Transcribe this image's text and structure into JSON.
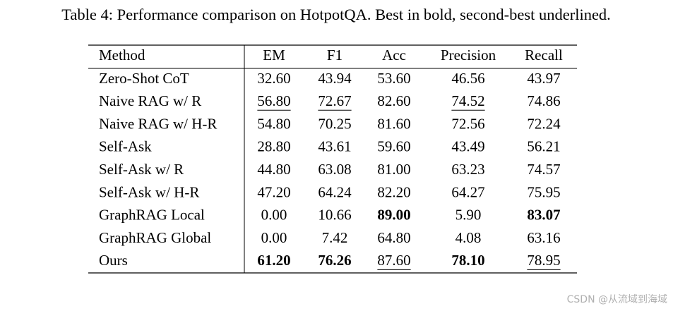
{
  "caption": "Table 4: Performance comparison on HotpotQA. Best in bold, second-best underlined.",
  "table": {
    "header": [
      "Method",
      "EM",
      "F1",
      "Acc",
      "Precision",
      "Recall"
    ],
    "rows": [
      [
        "Zero-Shot CoT",
        "32.60",
        "43.94",
        "53.60",
        "46.56",
        "43.97"
      ],
      [
        "Naive RAG w/ R",
        "56.80",
        "72.67",
        "82.60",
        "74.52",
        "74.86"
      ],
      [
        "Naive RAG w/ H-R",
        "54.80",
        "70.25",
        "81.60",
        "72.56",
        "72.24"
      ],
      [
        "Self-Ask",
        "28.80",
        "43.61",
        "59.60",
        "43.49",
        "56.21"
      ],
      [
        "Self-Ask w/ R",
        "44.80",
        "63.08",
        "81.00",
        "63.23",
        "74.57"
      ],
      [
        "Self-Ask w/ H-R",
        "47.20",
        "64.24",
        "82.20",
        "64.27",
        "75.95"
      ],
      [
        "GraphRAG Local",
        "0.00",
        "10.66",
        "89.00",
        "5.90",
        "83.07"
      ],
      [
        "GraphRAG Global",
        "0.00",
        "7.42",
        "64.80",
        "4.08",
        "63.16"
      ],
      [
        "Ours",
        "61.20",
        "76.26",
        "87.60",
        "78.10",
        "78.95"
      ]
    ],
    "bold": [
      [
        8,
        1
      ],
      [
        8,
        2
      ],
      [
        6,
        3
      ],
      [
        8,
        4
      ],
      [
        6,
        5
      ]
    ],
    "underline": [
      [
        1,
        1
      ],
      [
        1,
        2
      ],
      [
        8,
        3
      ],
      [
        1,
        4
      ],
      [
        8,
        5
      ]
    ]
  },
  "watermark": "CSDN @从流域到海域"
}
